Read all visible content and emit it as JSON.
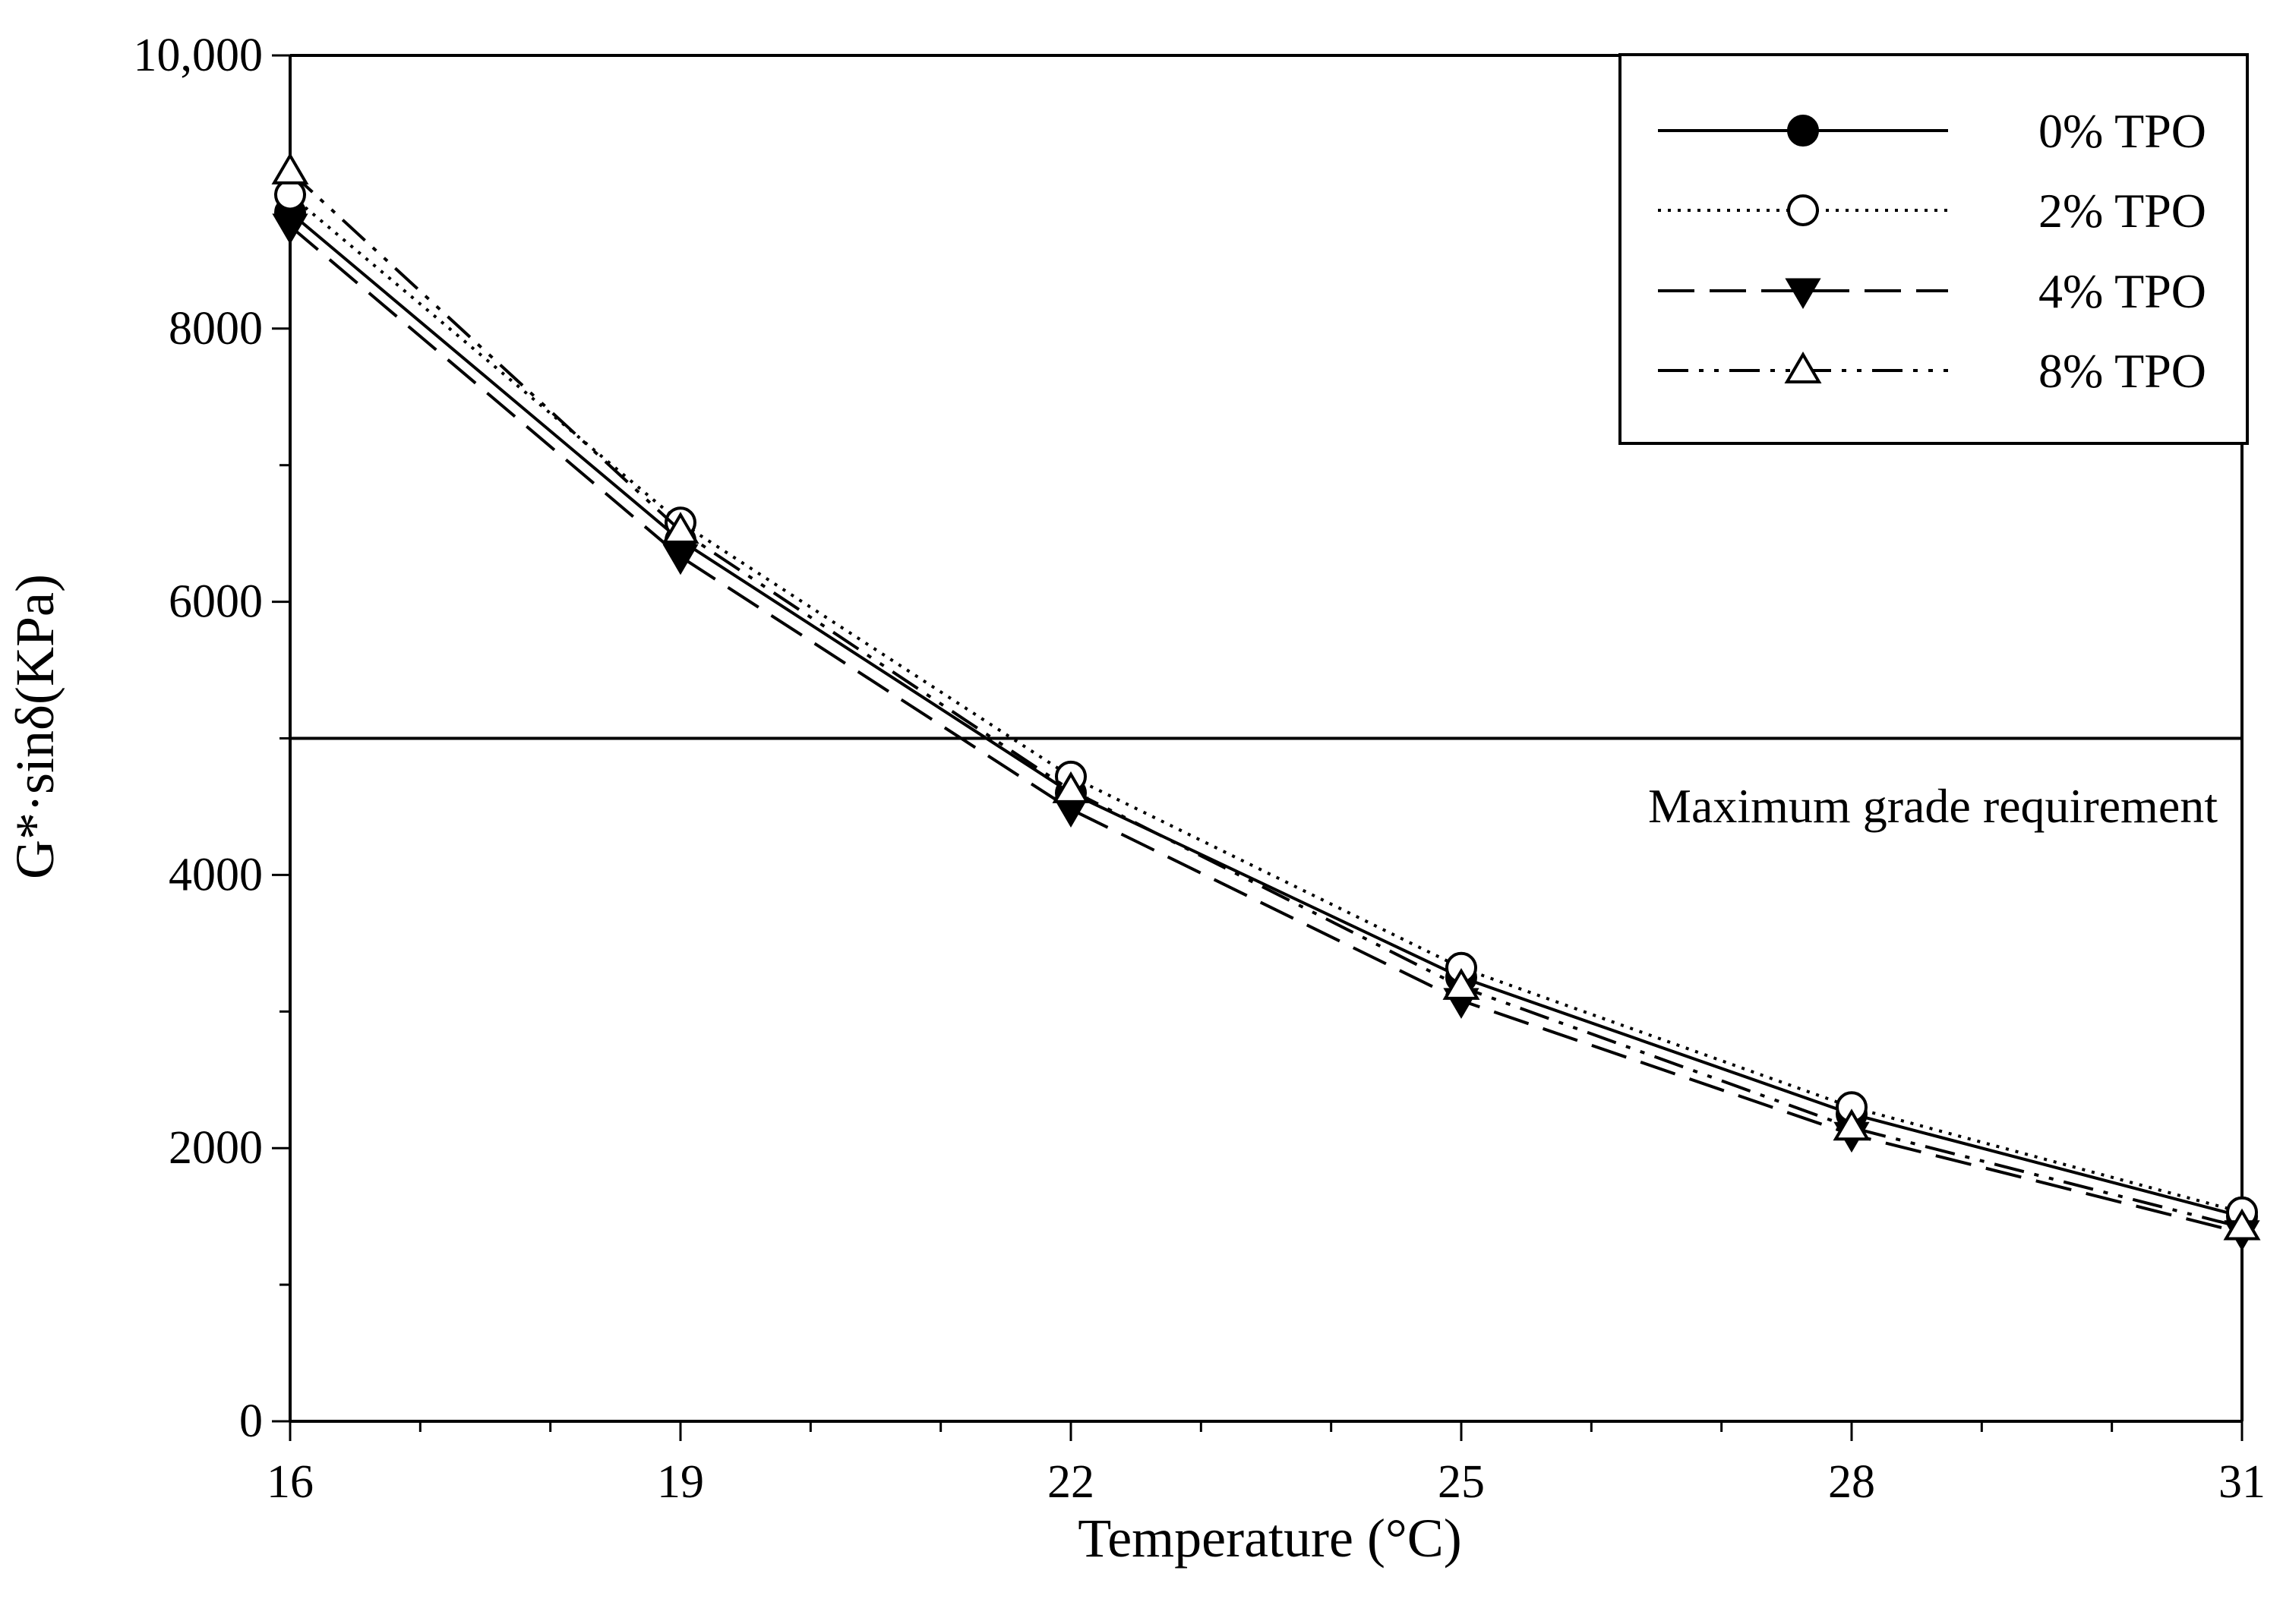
{
  "chart_data": {
    "type": "line",
    "title": "",
    "xlabel": "Temperature (°C)",
    "ylabel": "G*·sinδ(KPa)",
    "x": [
      16,
      19,
      22,
      25,
      28,
      31
    ],
    "xlim": [
      16,
      31
    ],
    "ylim": [
      0,
      10000
    ],
    "xticks": [
      16,
      19,
      22,
      25,
      28,
      31
    ],
    "xtick_labels": [
      "16",
      "19",
      "22",
      "25",
      "28",
      "31"
    ],
    "x_minor_step": 1,
    "yticks": [
      0,
      2000,
      4000,
      6000,
      8000,
      10000
    ],
    "ytick_labels": [
      "0",
      "2000",
      "4000",
      "6000",
      "8000",
      "10,000"
    ],
    "y_minor_step": 1000,
    "grid": false,
    "legend_position": "top-right",
    "reference_line": {
      "y": 5000,
      "label": "Maximum grade requirement"
    },
    "series": [
      {
        "name": "0% TPO",
        "marker": "filled-circle",
        "line_style": "solid",
        "values": [
          8850,
          6450,
          4600,
          3250,
          2250,
          1500
        ]
      },
      {
        "name": "2% TPO",
        "marker": "open-circle",
        "line_style": "dotted",
        "values": [
          8980,
          6580,
          4720,
          3320,
          2300,
          1530
        ]
      },
      {
        "name": "4% TPO",
        "marker": "filled-triangle-down",
        "line_style": "dashed",
        "values": [
          8750,
          6330,
          4480,
          3080,
          2100,
          1380
        ]
      },
      {
        "name": "8% TPO",
        "marker": "open-triangle-up",
        "line_style": "dash-dot-dot",
        "values": [
          9150,
          6520,
          4620,
          3180,
          2150,
          1420
        ]
      }
    ],
    "colors": {
      "line": "#000000",
      "background": "#ffffff"
    }
  }
}
